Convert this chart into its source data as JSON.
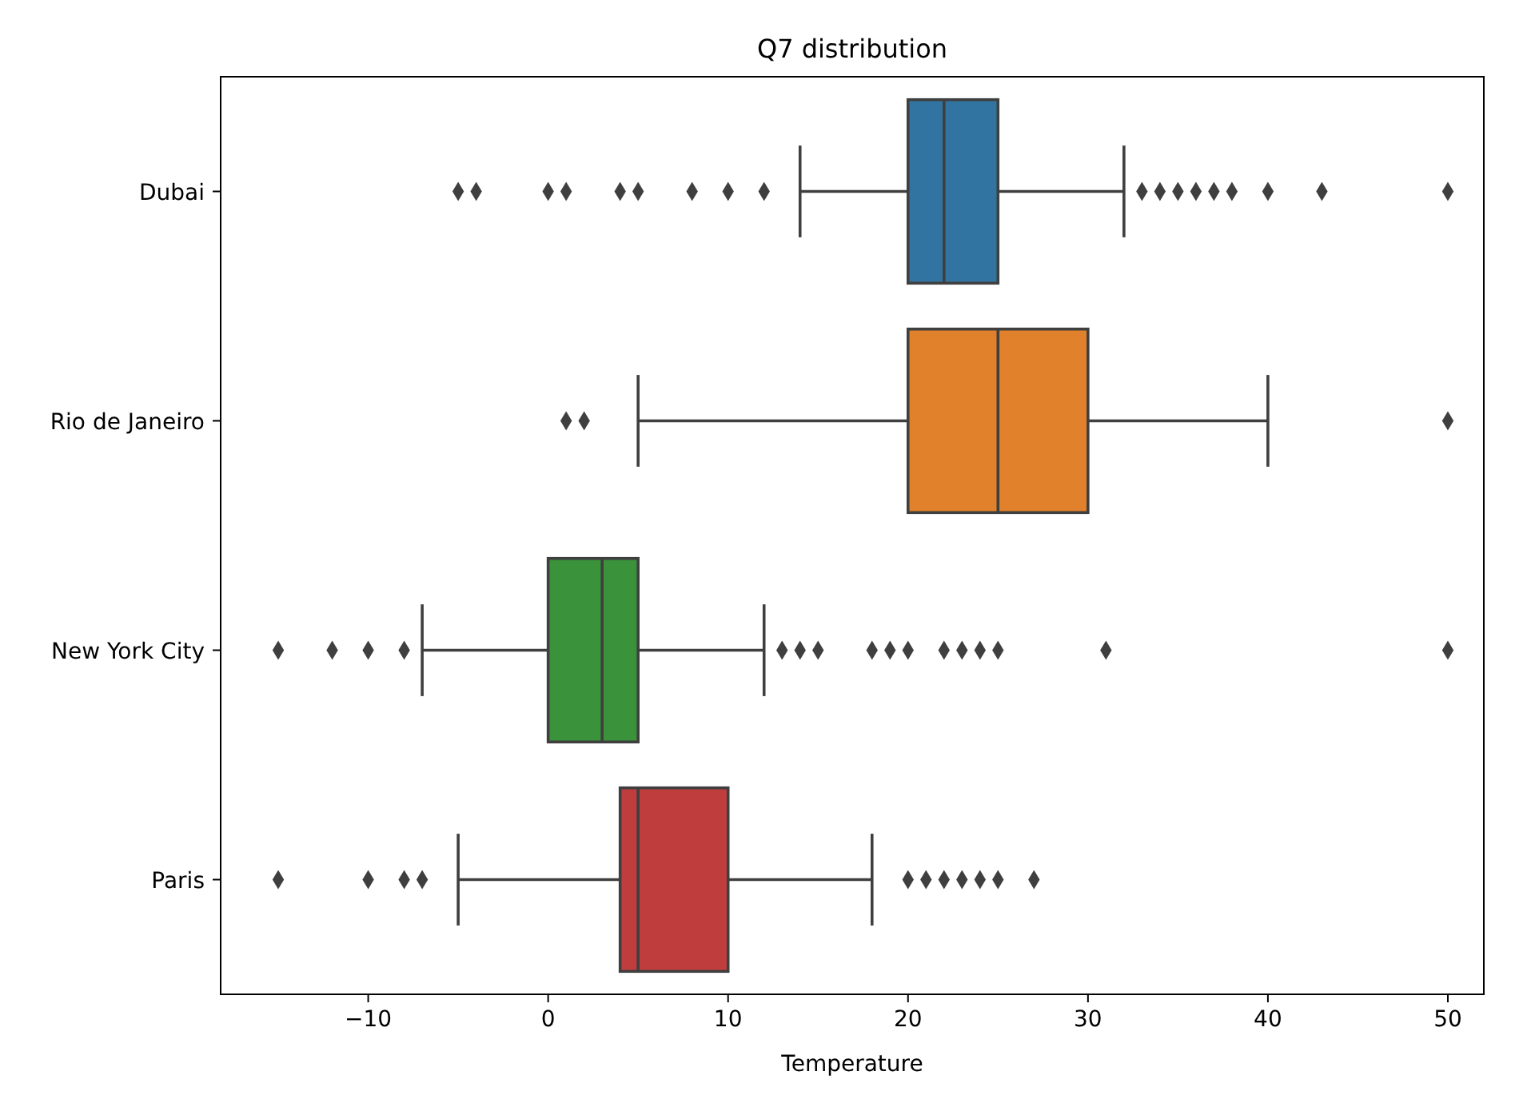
{
  "chart_data": {
    "type": "box",
    "title": "Q7 distribution",
    "xlabel": "Temperature",
    "orientation": "horizontal",
    "categories": [
      "Dubai",
      "Rio de Janeiro",
      "New York City",
      "Paris"
    ],
    "colors": [
      "#3274a1",
      "#e1812c",
      "#3a923a",
      "#c03d3e"
    ],
    "boxes": [
      {
        "low": 14,
        "q1": 20,
        "median": 22,
        "q3": 25,
        "high": 32,
        "outliers": [
          -5,
          -4,
          0,
          1,
          4,
          5,
          8,
          10,
          12,
          33,
          34,
          35,
          36,
          37,
          38,
          40,
          43,
          50
        ]
      },
      {
        "low": 5,
        "q1": 20,
        "median": 25,
        "q3": 30,
        "high": 40,
        "outliers": [
          1,
          2,
          50
        ]
      },
      {
        "low": -7,
        "q1": 0,
        "median": 3,
        "q3": 5,
        "high": 12,
        "outliers": [
          -15,
          -12,
          -10,
          -8,
          13,
          14,
          15,
          18,
          19,
          20,
          22,
          23,
          24,
          25,
          31,
          50
        ]
      },
      {
        "low": -5,
        "q1": 4,
        "median": 5,
        "q3": 10,
        "high": 18,
        "outliers": [
          -15,
          -10,
          -8,
          -7,
          20,
          21,
          22,
          23,
          24,
          25,
          27
        ]
      }
    ],
    "xlim": [
      -18.2,
      52
    ],
    "xticks": [
      {
        "value": -10,
        "label": "−10"
      },
      0,
      10,
      20,
      30,
      40,
      50
    ],
    "marker": "diamond"
  }
}
